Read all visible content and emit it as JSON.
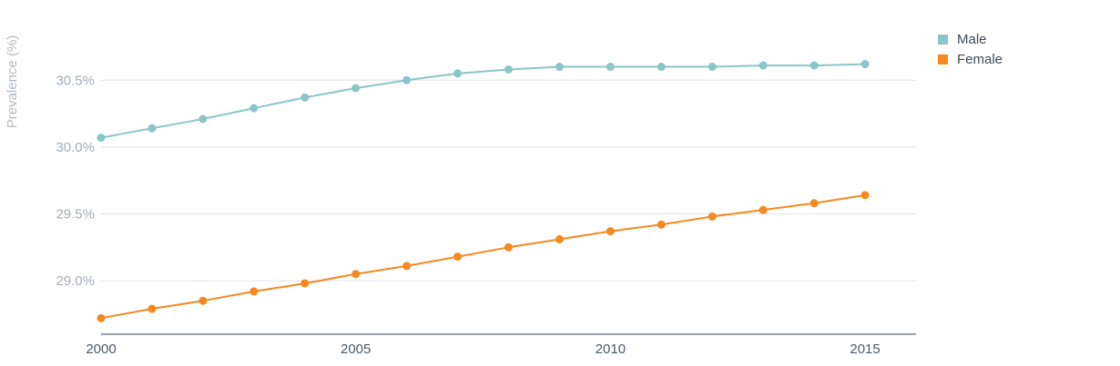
{
  "chart_data": {
    "type": "line",
    "ylabel": "Prevalence (%)",
    "y_ticks": [
      {
        "value": 29.0,
        "label": "29.0%"
      },
      {
        "value": 29.5,
        "label": "29.5%"
      },
      {
        "value": 30.0,
        "label": "30.0%"
      },
      {
        "value": 30.5,
        "label": "30.5%"
      }
    ],
    "x_ticks": [
      {
        "value": 2000,
        "label": "2000"
      },
      {
        "value": 2005,
        "label": "2005"
      },
      {
        "value": 2010,
        "label": "2010"
      },
      {
        "value": 2015,
        "label": "2015"
      }
    ],
    "xlim": [
      2000,
      2016
    ],
    "ylim": [
      28.6,
      30.95
    ],
    "grid": true,
    "legend_position": "top-right",
    "x": [
      2000,
      2001,
      2002,
      2003,
      2004,
      2005,
      2006,
      2007,
      2008,
      2009,
      2010,
      2011,
      2012,
      2013,
      2014,
      2015
    ],
    "series": [
      {
        "name": "Male",
        "color": "#8ac6c8",
        "values": [
          30.07,
          30.14,
          30.21,
          30.29,
          30.37,
          30.44,
          30.5,
          30.55,
          30.58,
          30.6,
          30.6,
          30.6,
          30.6,
          30.61,
          30.61,
          30.62
        ]
      },
      {
        "name": "Female",
        "color": "#f5891f",
        "values": [
          28.72,
          28.79,
          28.85,
          28.92,
          28.98,
          29.05,
          29.11,
          29.18,
          29.25,
          29.31,
          29.37,
          29.42,
          29.48,
          29.53,
          29.58,
          29.64
        ]
      }
    ]
  },
  "legend": {
    "items": [
      {
        "label": "Male",
        "color": "#8ac6c8"
      },
      {
        "label": "Female",
        "color": "#f5891f"
      }
    ]
  }
}
